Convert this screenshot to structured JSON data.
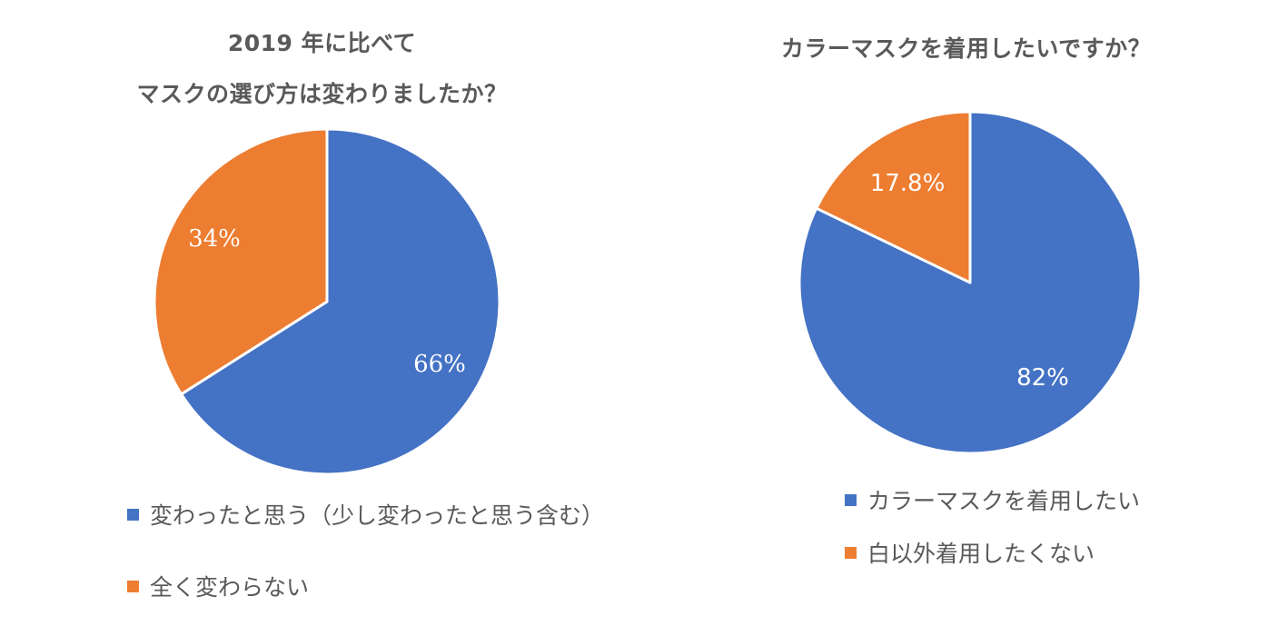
{
  "chart_data": [
    {
      "type": "pie",
      "title": [
        "2019 年に比べて",
        "マスクの選び方は変わりましたか？"
      ],
      "categories": [
        "変わったと思う（少し変わったと思う含む）",
        "全く変わらない"
      ],
      "values": [
        66,
        34
      ],
      "labels": [
        "66%",
        "34%"
      ],
      "colors": [
        "#4472C4",
        "#ED7D31"
      ],
      "legend": "bottom"
    },
    {
      "type": "pie",
      "title": [
        "カラーマスクを着用したいですか？"
      ],
      "categories": [
        "カラーマスクを着用したい",
        "白以外着用したくない"
      ],
      "values": [
        82,
        17.8
      ],
      "labels": [
        "82%",
        "17.8%"
      ],
      "colors": [
        "#4472C4",
        "#ED7D31"
      ],
      "legend": "bottom"
    }
  ]
}
